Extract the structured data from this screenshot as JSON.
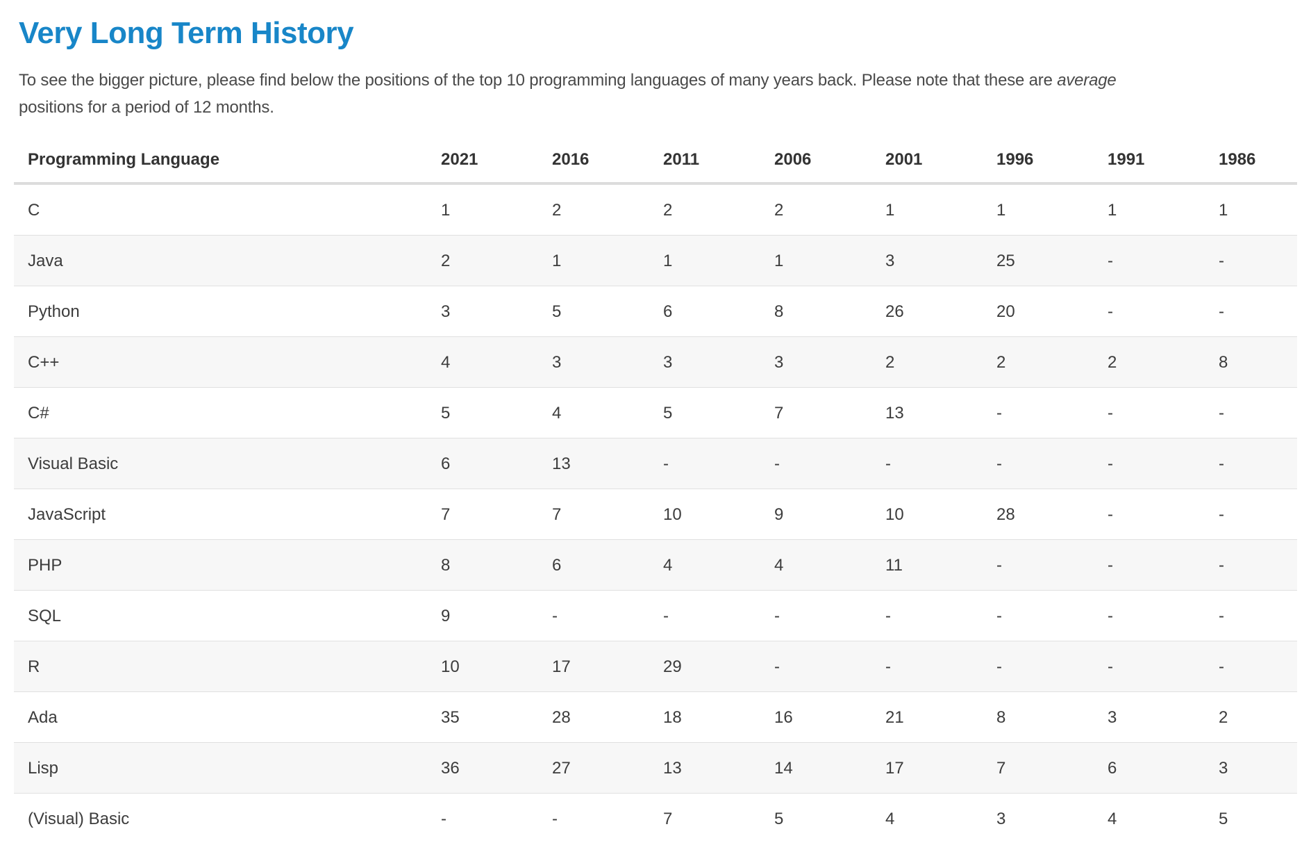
{
  "page": {
    "title": "Very Long Term History",
    "intro": {
      "line1_before_em": "To see the bigger picture, please find below the positions of the top 10 programming languages of many years back. Please note that these are ",
      "line1_em": "average",
      "line2": "positions for a period of 12 months."
    }
  },
  "table": {
    "language_header": "Programming Language",
    "years": [
      "2021",
      "2016",
      "2011",
      "2006",
      "2001",
      "1996",
      "1991",
      "1986"
    ],
    "rows": [
      {
        "language": "C",
        "values": [
          "1",
          "2",
          "2",
          "2",
          "1",
          "1",
          "1",
          "1"
        ]
      },
      {
        "language": "Java",
        "values": [
          "2",
          "1",
          "1",
          "1",
          "3",
          "25",
          "-",
          "-"
        ]
      },
      {
        "language": "Python",
        "values": [
          "3",
          "5",
          "6",
          "8",
          "26",
          "20",
          "-",
          "-"
        ]
      },
      {
        "language": "C++",
        "values": [
          "4",
          "3",
          "3",
          "3",
          "2",
          "2",
          "2",
          "8"
        ]
      },
      {
        "language": "C#",
        "values": [
          "5",
          "4",
          "5",
          "7",
          "13",
          "-",
          "-",
          "-"
        ]
      },
      {
        "language": "Visual Basic",
        "values": [
          "6",
          "13",
          "-",
          "-",
          "-",
          "-",
          "-",
          "-"
        ]
      },
      {
        "language": "JavaScript",
        "values": [
          "7",
          "7",
          "10",
          "9",
          "10",
          "28",
          "-",
          "-"
        ]
      },
      {
        "language": "PHP",
        "values": [
          "8",
          "6",
          "4",
          "4",
          "11",
          "-",
          "-",
          "-"
        ]
      },
      {
        "language": "SQL",
        "values": [
          "9",
          "-",
          "-",
          "-",
          "-",
          "-",
          "-",
          "-"
        ]
      },
      {
        "language": "R",
        "values": [
          "10",
          "17",
          "29",
          "-",
          "-",
          "-",
          "-",
          "-"
        ]
      },
      {
        "language": "Ada",
        "values": [
          "35",
          "28",
          "18",
          "16",
          "21",
          "8",
          "3",
          "2"
        ]
      },
      {
        "language": "Lisp",
        "values": [
          "36",
          "27",
          "13",
          "14",
          "17",
          "7",
          "6",
          "3"
        ]
      },
      {
        "language": "(Visual) Basic",
        "values": [
          "-",
          "-",
          "7",
          "5",
          "4",
          "3",
          "4",
          "5"
        ]
      }
    ]
  },
  "colors": {
    "title_blue": "#1886C8",
    "body_text": "#4A4A4A",
    "table_text": "#3C3C3C",
    "stripe": "#F7F7F7",
    "border": "#E0E0E0"
  }
}
